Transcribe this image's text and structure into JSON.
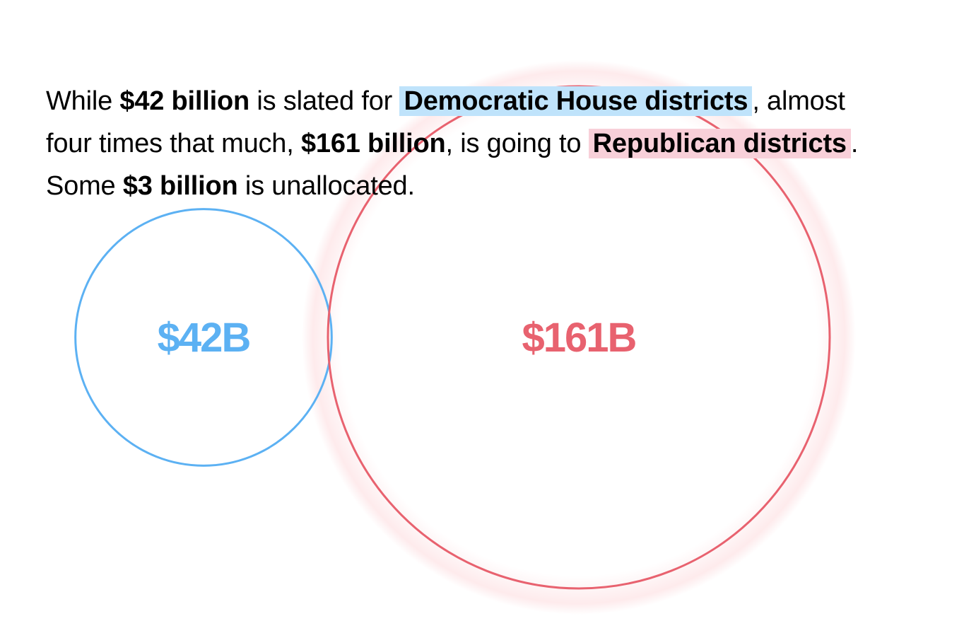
{
  "intro": {
    "p1": "While ",
    "dem_amount": "$42 billion",
    "p2": " is slated for ",
    "dem_label": "Democratic House districts",
    "p3": ", almost",
    "p4": "four times that much, ",
    "rep_amount": "$161 billion",
    "p5": ", is going to ",
    "rep_label": "Republican districts",
    "p6": ".",
    "p7": "Some ",
    "unalloc_amount": "$3 billion",
    "p8": " is unallocated."
  },
  "colors": {
    "democratic": "#5cb1f3",
    "republican": "#e8626f",
    "democratic_highlight": "#bfe3fb",
    "republican_highlight": "#f8d0d9"
  },
  "chart_data": {
    "type": "bubble",
    "unit": "billion dollars",
    "bubbles": [
      {
        "group": "Democratic House districts",
        "value": 42,
        "label": "$42B",
        "color": "#5cb1f3"
      },
      {
        "group": "Republican districts",
        "value": 161,
        "label": "$161B",
        "color": "#e8626f"
      }
    ],
    "unallocated": {
      "value": 3,
      "shown_as_bubble": false
    }
  }
}
